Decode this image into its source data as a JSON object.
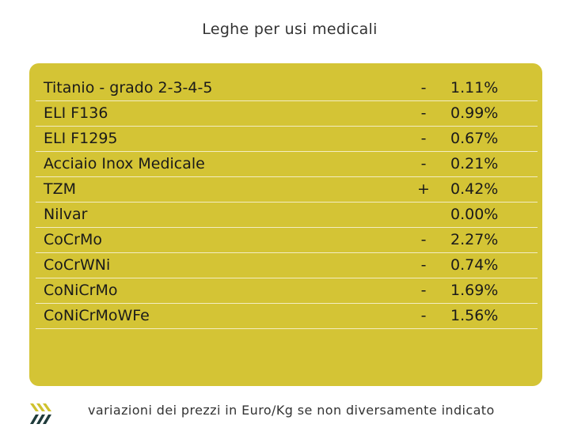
{
  "title": "Leghe per usi medicali",
  "rows": [
    {
      "name": "Titanio - grado 2-3-4-5",
      "sign": "-",
      "value": "1.11%"
    },
    {
      "name": "ELI F136",
      "sign": "-",
      "value": "0.99%"
    },
    {
      "name": "ELI F1295",
      "sign": "-",
      "value": "0.67%"
    },
    {
      "name": "Acciaio Inox Medicale",
      "sign": "-",
      "value": "0.21%"
    },
    {
      "name": "TZM",
      "sign": "+",
      "value": "0.42%"
    },
    {
      "name": "Nilvar",
      "sign": "",
      "value": "0.00%"
    },
    {
      "name": "CoCrMo",
      "sign": "-",
      "value": "2.27%"
    },
    {
      "name": "CoCrWNi",
      "sign": "-",
      "value": "0.74%"
    },
    {
      "name": "CoNiCrMo",
      "sign": "-",
      "value": "1.69%"
    },
    {
      "name": "CoNiCrMoWFe",
      "sign": "-",
      "value": "1.56%"
    }
  ],
  "footer": {
    "note": "variazioni dei prezzi in Euro/Kg se non diversamente indicato",
    "logo_icon": "stripes-logo-icon"
  },
  "colors": {
    "panel": "#d4c435",
    "logo_yellow": "#cfc22e",
    "logo_dark": "#1f3b3b"
  }
}
